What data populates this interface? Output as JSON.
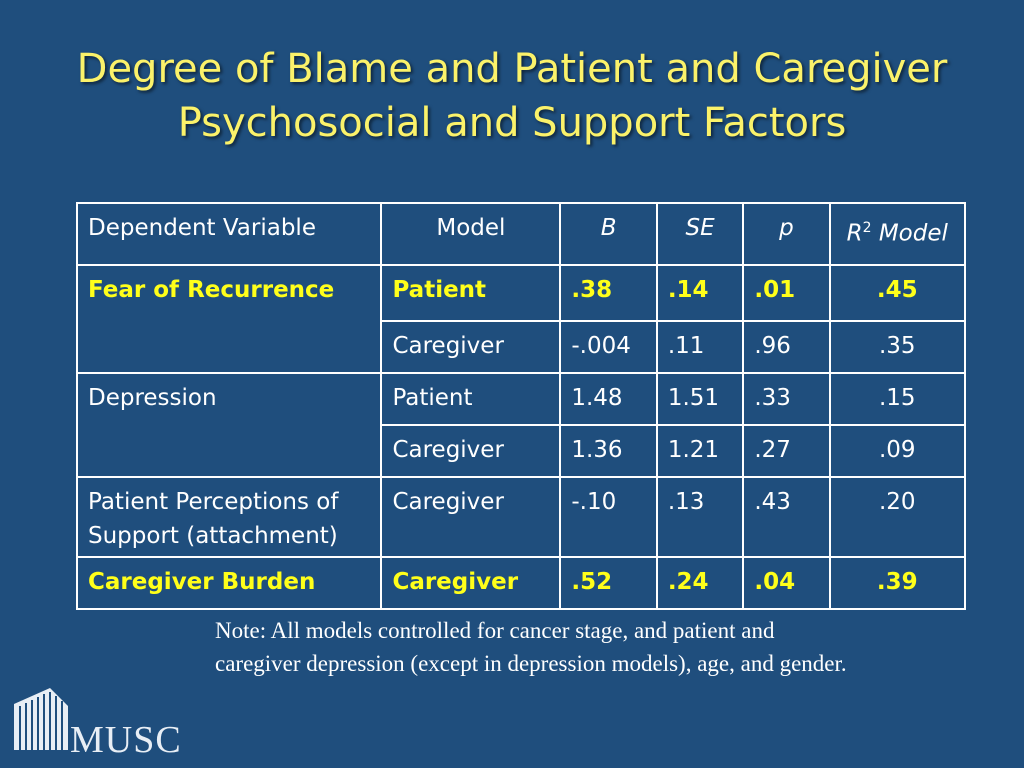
{
  "slide": {
    "title_line1": "Degree of Blame and Patient and Caregiver",
    "title_line2": "Psychosocial and Support Factors"
  },
  "table": {
    "headers": {
      "dependent_variable": "Dependent Variable",
      "model": "Model",
      "b": "B",
      "se": "SE",
      "p": "p",
      "r2_letter": "R",
      "r2_sup": "2",
      "r2_rest": " Model"
    },
    "rows": [
      {
        "dep": "Fear of Recurrence",
        "model": "Patient",
        "b": ".38",
        "se": ".14",
        "p": ".01",
        "r2": ".45",
        "highlight": true
      },
      {
        "dep": "",
        "model": "Caregiver",
        "b": "-.004",
        "se": ".11",
        "p": ".96",
        "r2": ".35",
        "highlight": false
      },
      {
        "dep": "Depression",
        "model": "Patient",
        "b": "1.48",
        "se": "1.51",
        "p": ".33",
        "r2": ".15",
        "highlight": false
      },
      {
        "dep": "",
        "model": "Caregiver",
        "b": "1.36",
        "se": "1.21",
        "p": ".27",
        "r2": ".09",
        "highlight": false
      },
      {
        "dep_line1": "Patient Perceptions of",
        "dep_line2": "Support (attachment)",
        "model": "Caregiver",
        "b": "-.10",
        "se": ".13",
        "p": ".43",
        "r2": ".20",
        "highlight": false
      },
      {
        "dep": "Caregiver Burden",
        "model": "Caregiver",
        "b": ".52",
        "se": ".24",
        "p": ".04",
        "r2": ".39",
        "highlight": true
      }
    ]
  },
  "note": {
    "line1": "Note:  All models controlled for cancer stage, and patient and",
    "line2": "caregiver depression (except in depression models), age, and gender."
  },
  "logo": {
    "text": "MUSC",
    "icon": "building-columns-icon"
  },
  "colors": {
    "background": "#1f4e7d",
    "title": "#fbf26a",
    "highlight": "#ffff1a",
    "text": "#ffffff"
  }
}
